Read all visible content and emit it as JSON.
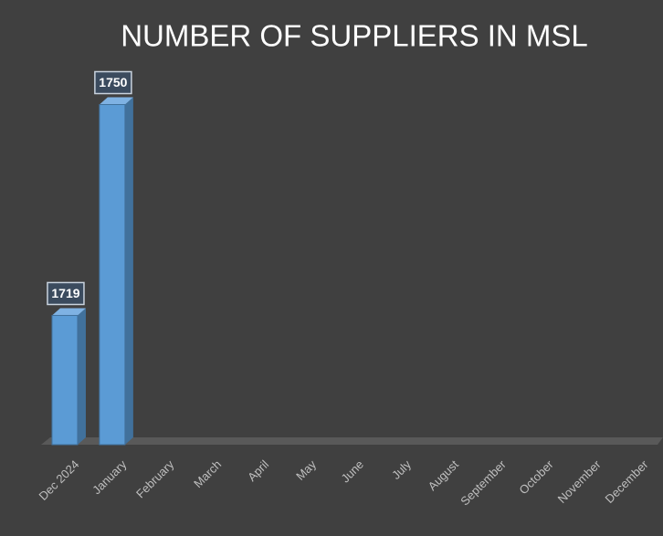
{
  "chart_data": {
    "type": "bar3d",
    "title": "NUMBER OF SUPPLIERS IN MSL",
    "categories": [
      "Dec 2024",
      "January",
      "February",
      "March",
      "April",
      "May",
      "June",
      "July",
      "August",
      "September",
      "October",
      "November",
      "December"
    ],
    "values": [
      1719,
      1750,
      null,
      null,
      null,
      null,
      null,
      null,
      null,
      null,
      null,
      null,
      null
    ],
    "color": "#5b9bd5",
    "ylim": [
      1700,
      1760
    ]
  }
}
